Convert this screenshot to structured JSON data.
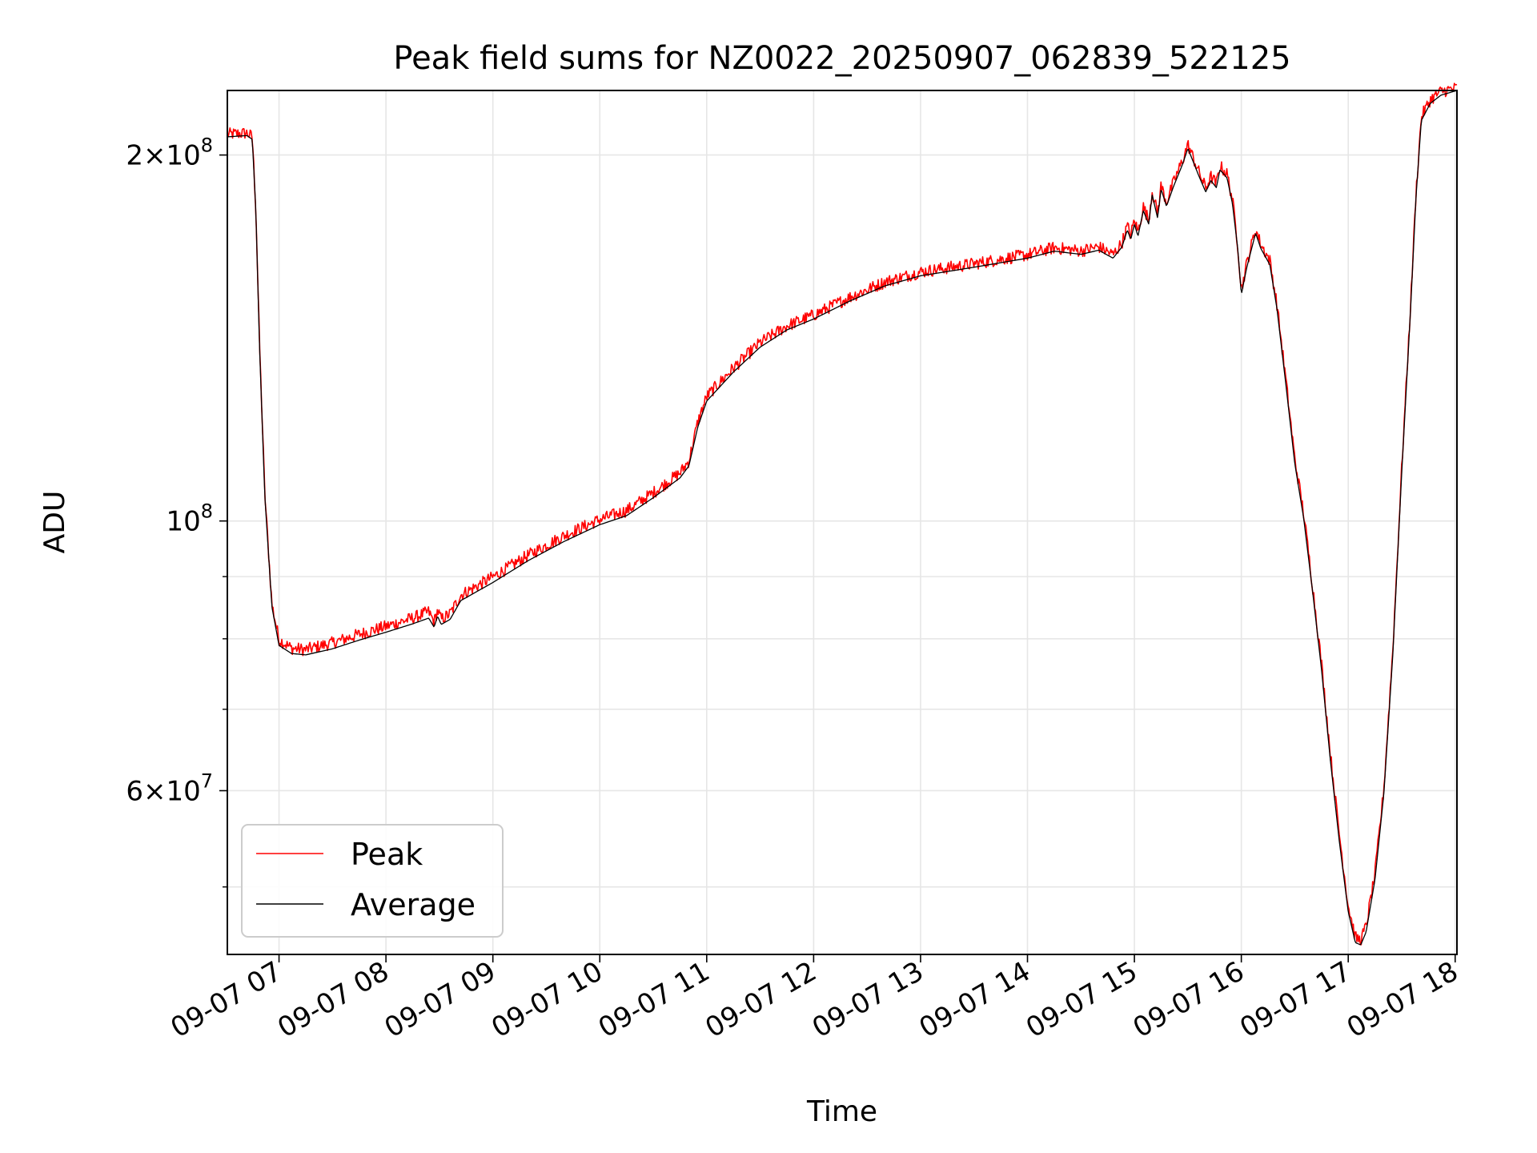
{
  "chart_data": {
    "type": "line",
    "title": "Peak field sums for NZ0022_20250907_062839_522125",
    "xlabel": "Time",
    "ylabel": "ADU",
    "x_unit": "datetime",
    "xlim": [
      "2025-09-07T06:31",
      "2025-09-07T18:01"
    ],
    "ylim": [
      44000000,
      226000000
    ],
    "y_scale": "log",
    "grid": true,
    "legend_position": "lower-left",
    "x_ticks": [
      "09-07 07",
      "09-07 08",
      "09-07 09",
      "09-07 10",
      "09-07 11",
      "09-07 12",
      "09-07 13",
      "09-07 14",
      "09-07 15",
      "09-07 16",
      "09-07 17",
      "09-07 18"
    ],
    "y_tick_labels": [
      {
        "value": 200000000,
        "mantissa": "2",
        "exponent": "8"
      },
      {
        "value": 100000000,
        "mantissa": "",
        "exponent": "8"
      },
      {
        "value": 60000000,
        "mantissa": "6",
        "exponent": "7"
      }
    ],
    "y_minor_ticks": [
      50000000,
      70000000,
      80000000,
      90000000
    ],
    "series": [
      {
        "name": "Peak",
        "color": "#ff0000",
        "noise": 0.012,
        "points": [
          [
            "2025-09-07T06:31",
            207000000
          ],
          [
            "2025-09-07T06:42",
            207500000
          ],
          [
            "2025-09-07T06:45",
            206000000
          ],
          [
            "2025-09-07T06:47",
            180000000
          ],
          [
            "2025-09-07T06:49",
            140000000
          ],
          [
            "2025-09-07T06:52",
            105000000
          ],
          [
            "2025-09-07T06:56",
            85000000
          ],
          [
            "2025-09-07T07:00",
            79500000
          ],
          [
            "2025-09-07T07:07",
            78200000
          ],
          [
            "2025-09-07T07:15",
            78000000
          ],
          [
            "2025-09-07T07:30",
            79000000
          ],
          [
            "2025-09-07T07:45",
            80300000
          ],
          [
            "2025-09-07T08:00",
            81500000
          ],
          [
            "2025-09-07T08:15",
            82800000
          ],
          [
            "2025-09-07T08:24",
            83800000
          ],
          [
            "2025-09-07T08:27",
            82200000
          ],
          [
            "2025-09-07T08:29",
            84000000
          ],
          [
            "2025-09-07T08:31",
            82600000
          ],
          [
            "2025-09-07T08:36",
            83500000
          ],
          [
            "2025-09-07T08:42",
            86500000
          ],
          [
            "2025-09-07T09:00",
            89500000
          ],
          [
            "2025-09-07T09:20",
            93300000
          ],
          [
            "2025-09-07T09:40",
            96800000
          ],
          [
            "2025-09-07T10:00",
            99800000
          ],
          [
            "2025-09-07T10:15",
            101500000
          ],
          [
            "2025-09-07T10:30",
            105000000
          ],
          [
            "2025-09-07T10:45",
            109000000
          ],
          [
            "2025-09-07T10:50",
            111500000
          ],
          [
            "2025-09-07T10:55",
            120000000
          ],
          [
            "2025-09-07T11:00",
            126000000
          ],
          [
            "2025-09-07T11:15",
            133000000
          ],
          [
            "2025-09-07T11:30",
            139500000
          ],
          [
            "2025-09-07T11:45",
            144000000
          ],
          [
            "2025-09-07T12:00",
            147000000
          ],
          [
            "2025-09-07T12:20",
            152000000
          ],
          [
            "2025-09-07T12:40",
            156500000
          ],
          [
            "2025-09-07T13:00",
            159500000
          ],
          [
            "2025-09-07T13:30",
            162000000
          ],
          [
            "2025-09-07T14:00",
            164800000
          ],
          [
            "2025-09-07T14:15",
            167000000
          ],
          [
            "2025-09-07T14:30",
            166000000
          ],
          [
            "2025-09-07T14:40",
            167300000
          ],
          [
            "2025-09-07T14:48",
            164800000
          ],
          [
            "2025-09-07T14:53",
            168500000
          ],
          [
            "2025-09-07T14:56",
            174000000
          ],
          [
            "2025-09-07T14:58",
            171000000
          ],
          [
            "2025-09-07T15:00",
            176000000
          ],
          [
            "2025-09-07T15:02",
            172000000
          ],
          [
            "2025-09-07T15:05",
            180500000
          ],
          [
            "2025-09-07T15:08",
            176000000
          ],
          [
            "2025-09-07T15:10",
            186000000
          ],
          [
            "2025-09-07T15:13",
            178000000
          ],
          [
            "2025-09-07T15:15",
            188000000
          ],
          [
            "2025-09-07T15:18",
            182000000
          ],
          [
            "2025-09-07T15:22",
            189000000
          ],
          [
            "2025-09-07T15:27",
            197000000
          ],
          [
            "2025-09-07T15:30",
            203000000
          ],
          [
            "2025-09-07T15:33",
            198000000
          ],
          [
            "2025-09-07T15:36",
            193000000
          ],
          [
            "2025-09-07T15:40",
            187000000
          ],
          [
            "2025-09-07T15:43",
            191000000
          ],
          [
            "2025-09-07T15:46",
            188500000
          ],
          [
            "2025-09-07T15:48",
            195000000
          ],
          [
            "2025-09-07T15:52",
            192000000
          ],
          [
            "2025-09-07T15:55",
            183000000
          ],
          [
            "2025-09-07T15:58",
            168000000
          ],
          [
            "2025-09-07T16:00",
            154000000
          ],
          [
            "2025-09-07T16:03",
            162000000
          ],
          [
            "2025-09-07T16:08",
            173000000
          ],
          [
            "2025-09-07T16:11",
            168000000
          ],
          [
            "2025-09-07T16:16",
            163000000
          ],
          [
            "2025-09-07T16:20",
            150000000
          ],
          [
            "2025-09-07T16:25",
            130000000
          ],
          [
            "2025-09-07T16:30",
            112000000
          ],
          [
            "2025-09-07T16:35",
            101000000
          ],
          [
            "2025-09-07T16:40",
            88000000
          ],
          [
            "2025-09-07T16:45",
            76000000
          ],
          [
            "2025-09-07T16:50",
            64000000
          ],
          [
            "2025-09-07T16:55",
            55000000
          ],
          [
            "2025-09-07T17:00",
            48000000
          ],
          [
            "2025-09-07T17:04",
            45200000
          ],
          [
            "2025-09-07T17:07",
            45000000
          ],
          [
            "2025-09-07T17:10",
            46200000
          ],
          [
            "2025-09-07T17:15",
            51000000
          ],
          [
            "2025-09-07T17:20",
            60000000
          ],
          [
            "2025-09-07T17:25",
            78000000
          ],
          [
            "2025-09-07T17:30",
            110000000
          ],
          [
            "2025-09-07T17:35",
            150000000
          ],
          [
            "2025-09-07T17:38",
            185000000
          ],
          [
            "2025-09-07T17:41",
            214000000
          ],
          [
            "2025-09-07T17:46",
            221000000
          ],
          [
            "2025-09-07T17:52",
            224500000
          ],
          [
            "2025-09-07T18:01",
            226000000
          ]
        ]
      },
      {
        "name": "Average",
        "color": "#000000",
        "noise": 0,
        "points": [
          [
            "2025-09-07T06:31",
            207000000
          ],
          [
            "2025-09-07T06:42",
            207500000
          ],
          [
            "2025-09-07T06:45",
            206000000
          ],
          [
            "2025-09-07T06:47",
            180000000
          ],
          [
            "2025-09-07T06:49",
            140000000
          ],
          [
            "2025-09-07T06:52",
            105000000
          ],
          [
            "2025-09-07T06:56",
            85000000
          ],
          [
            "2025-09-07T07:00",
            79000000
          ],
          [
            "2025-09-07T07:07",
            77800000
          ],
          [
            "2025-09-07T07:15",
            77600000
          ],
          [
            "2025-09-07T07:30",
            78500000
          ],
          [
            "2025-09-07T07:45",
            79800000
          ],
          [
            "2025-09-07T08:00",
            81000000
          ],
          [
            "2025-09-07T08:15",
            82300000
          ],
          [
            "2025-09-07T08:24",
            83200000
          ],
          [
            "2025-09-07T08:27",
            81800000
          ],
          [
            "2025-09-07T08:29",
            83500000
          ],
          [
            "2025-09-07T08:31",
            82200000
          ],
          [
            "2025-09-07T08:36",
            83000000
          ],
          [
            "2025-09-07T08:42",
            86000000
          ],
          [
            "2025-09-07T09:00",
            89000000
          ],
          [
            "2025-09-07T09:20",
            92800000
          ],
          [
            "2025-09-07T09:40",
            96200000
          ],
          [
            "2025-09-07T10:00",
            99300000
          ],
          [
            "2025-09-07T10:15",
            101000000
          ],
          [
            "2025-09-07T10:30",
            104500000
          ],
          [
            "2025-09-07T10:45",
            108500000
          ],
          [
            "2025-09-07T10:50",
            111000000
          ],
          [
            "2025-09-07T10:55",
            119500000
          ],
          [
            "2025-09-07T11:00",
            125500000
          ],
          [
            "2025-09-07T11:15",
            132600000
          ],
          [
            "2025-09-07T11:30",
            139000000
          ],
          [
            "2025-09-07T11:45",
            143600000
          ],
          [
            "2025-09-07T12:00",
            146600000
          ],
          [
            "2025-09-07T12:20",
            151600000
          ],
          [
            "2025-09-07T12:40",
            156100000
          ],
          [
            "2025-09-07T13:00",
            159100000
          ],
          [
            "2025-09-07T13:30",
            161700000
          ],
          [
            "2025-09-07T14:00",
            164500000
          ],
          [
            "2025-09-07T14:15",
            166700000
          ],
          [
            "2025-09-07T14:30",
            165700000
          ],
          [
            "2025-09-07T14:40",
            167000000
          ],
          [
            "2025-09-07T14:48",
            164500000
          ],
          [
            "2025-09-07T14:53",
            168000000
          ],
          [
            "2025-09-07T14:56",
            173500000
          ],
          [
            "2025-09-07T14:58",
            170500000
          ],
          [
            "2025-09-07T15:00",
            175500000
          ],
          [
            "2025-09-07T15:02",
            171500000
          ],
          [
            "2025-09-07T15:05",
            180000000
          ],
          [
            "2025-09-07T15:08",
            175500000
          ],
          [
            "2025-09-07T15:10",
            185500000
          ],
          [
            "2025-09-07T15:13",
            177500000
          ],
          [
            "2025-09-07T15:15",
            187500000
          ],
          [
            "2025-09-07T15:18",
            181500000
          ],
          [
            "2025-09-07T15:22",
            188500000
          ],
          [
            "2025-09-07T15:27",
            196500000
          ],
          [
            "2025-09-07T15:30",
            202500000
          ],
          [
            "2025-09-07T15:33",
            197500000
          ],
          [
            "2025-09-07T15:36",
            192500000
          ],
          [
            "2025-09-07T15:40",
            186500000
          ],
          [
            "2025-09-07T15:43",
            190500000
          ],
          [
            "2025-09-07T15:46",
            188000000
          ],
          [
            "2025-09-07T15:48",
            194500000
          ],
          [
            "2025-09-07T15:52",
            191500000
          ],
          [
            "2025-09-07T15:55",
            182500000
          ],
          [
            "2025-09-07T15:58",
            167500000
          ],
          [
            "2025-09-07T16:00",
            153500000
          ],
          [
            "2025-09-07T16:03",
            161500000
          ],
          [
            "2025-09-07T16:08",
            172500000
          ],
          [
            "2025-09-07T16:11",
            167500000
          ],
          [
            "2025-09-07T16:16",
            162500000
          ],
          [
            "2025-09-07T16:20",
            149500000
          ],
          [
            "2025-09-07T16:25",
            129500000
          ],
          [
            "2025-09-07T16:30",
            111500000
          ],
          [
            "2025-09-07T16:35",
            100500000
          ],
          [
            "2025-09-07T16:40",
            87500000
          ],
          [
            "2025-09-07T16:45",
            75500000
          ],
          [
            "2025-09-07T16:50",
            63500000
          ],
          [
            "2025-09-07T16:55",
            54500000
          ],
          [
            "2025-09-07T17:00",
            47700000
          ],
          [
            "2025-09-07T17:04",
            45000000
          ],
          [
            "2025-09-07T17:07",
            44800000
          ],
          [
            "2025-09-07T17:10",
            45900000
          ],
          [
            "2025-09-07T17:15",
            50700000
          ],
          [
            "2025-09-07T17:20",
            59700000
          ],
          [
            "2025-09-07T17:25",
            77600000
          ],
          [
            "2025-09-07T17:30",
            109500000
          ],
          [
            "2025-09-07T17:35",
            149500000
          ],
          [
            "2025-09-07T17:38",
            184500000
          ],
          [
            "2025-09-07T17:41",
            213500000
          ],
          [
            "2025-09-07T17:46",
            220500000
          ],
          [
            "2025-09-07T17:52",
            224000000
          ],
          [
            "2025-09-07T18:01",
            226000000
          ]
        ]
      }
    ]
  }
}
